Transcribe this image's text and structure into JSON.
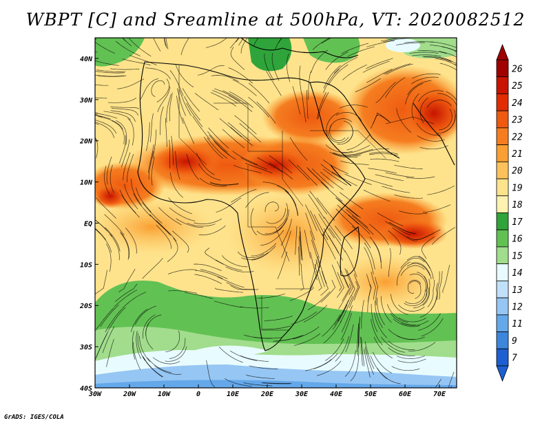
{
  "title": "WBPT [C] and Sreamline at 500hPa, VT: 2020082512",
  "credit": "GrADS: IGES/COLA",
  "map": {
    "lon_range": [
      -30,
      75
    ],
    "lat_range": [
      -40,
      45
    ],
    "lon_ticks": [
      {
        "value": -30,
        "label": "30W"
      },
      {
        "value": -20,
        "label": "20W"
      },
      {
        "value": -10,
        "label": "10W"
      },
      {
        "value": 0,
        "label": "0"
      },
      {
        "value": 10,
        "label": "10E"
      },
      {
        "value": 20,
        "label": "20E"
      },
      {
        "value": 30,
        "label": "30E"
      },
      {
        "value": 40,
        "label": "40E"
      },
      {
        "value": 50,
        "label": "50E"
      },
      {
        "value": 60,
        "label": "60E"
      },
      {
        "value": 70,
        "label": "70E"
      }
    ],
    "lat_ticks": [
      {
        "value": 40,
        "label": "40N"
      },
      {
        "value": 30,
        "label": "30N"
      },
      {
        "value": 20,
        "label": "20N"
      },
      {
        "value": 10,
        "label": "10N"
      },
      {
        "value": 0,
        "label": "EQ"
      },
      {
        "value": -10,
        "label": "10S"
      },
      {
        "value": -20,
        "label": "20S"
      },
      {
        "value": -30,
        "label": "30S"
      },
      {
        "value": -40,
        "label": "40S"
      }
    ]
  },
  "colorbar": {
    "levels": [
      "26",
      "25",
      "24",
      "23",
      "22",
      "21",
      "20",
      "19",
      "18",
      "17",
      "16",
      "15",
      "14",
      "13",
      "12",
      "11",
      "9",
      "7"
    ],
    "colors": [
      "#a00000",
      "#c81400",
      "#e02c00",
      "#ee5a10",
      "#f57d20",
      "#fa9f32",
      "#fcc15a",
      "#fee38c",
      "#fff2b0",
      "#2fa43a",
      "#62c153",
      "#a1dd8c",
      "#e8fbff",
      "#c0e0fa",
      "#96c6f3",
      "#64a8ea",
      "#3c86dc",
      "#1d5fd0"
    ]
  }
}
